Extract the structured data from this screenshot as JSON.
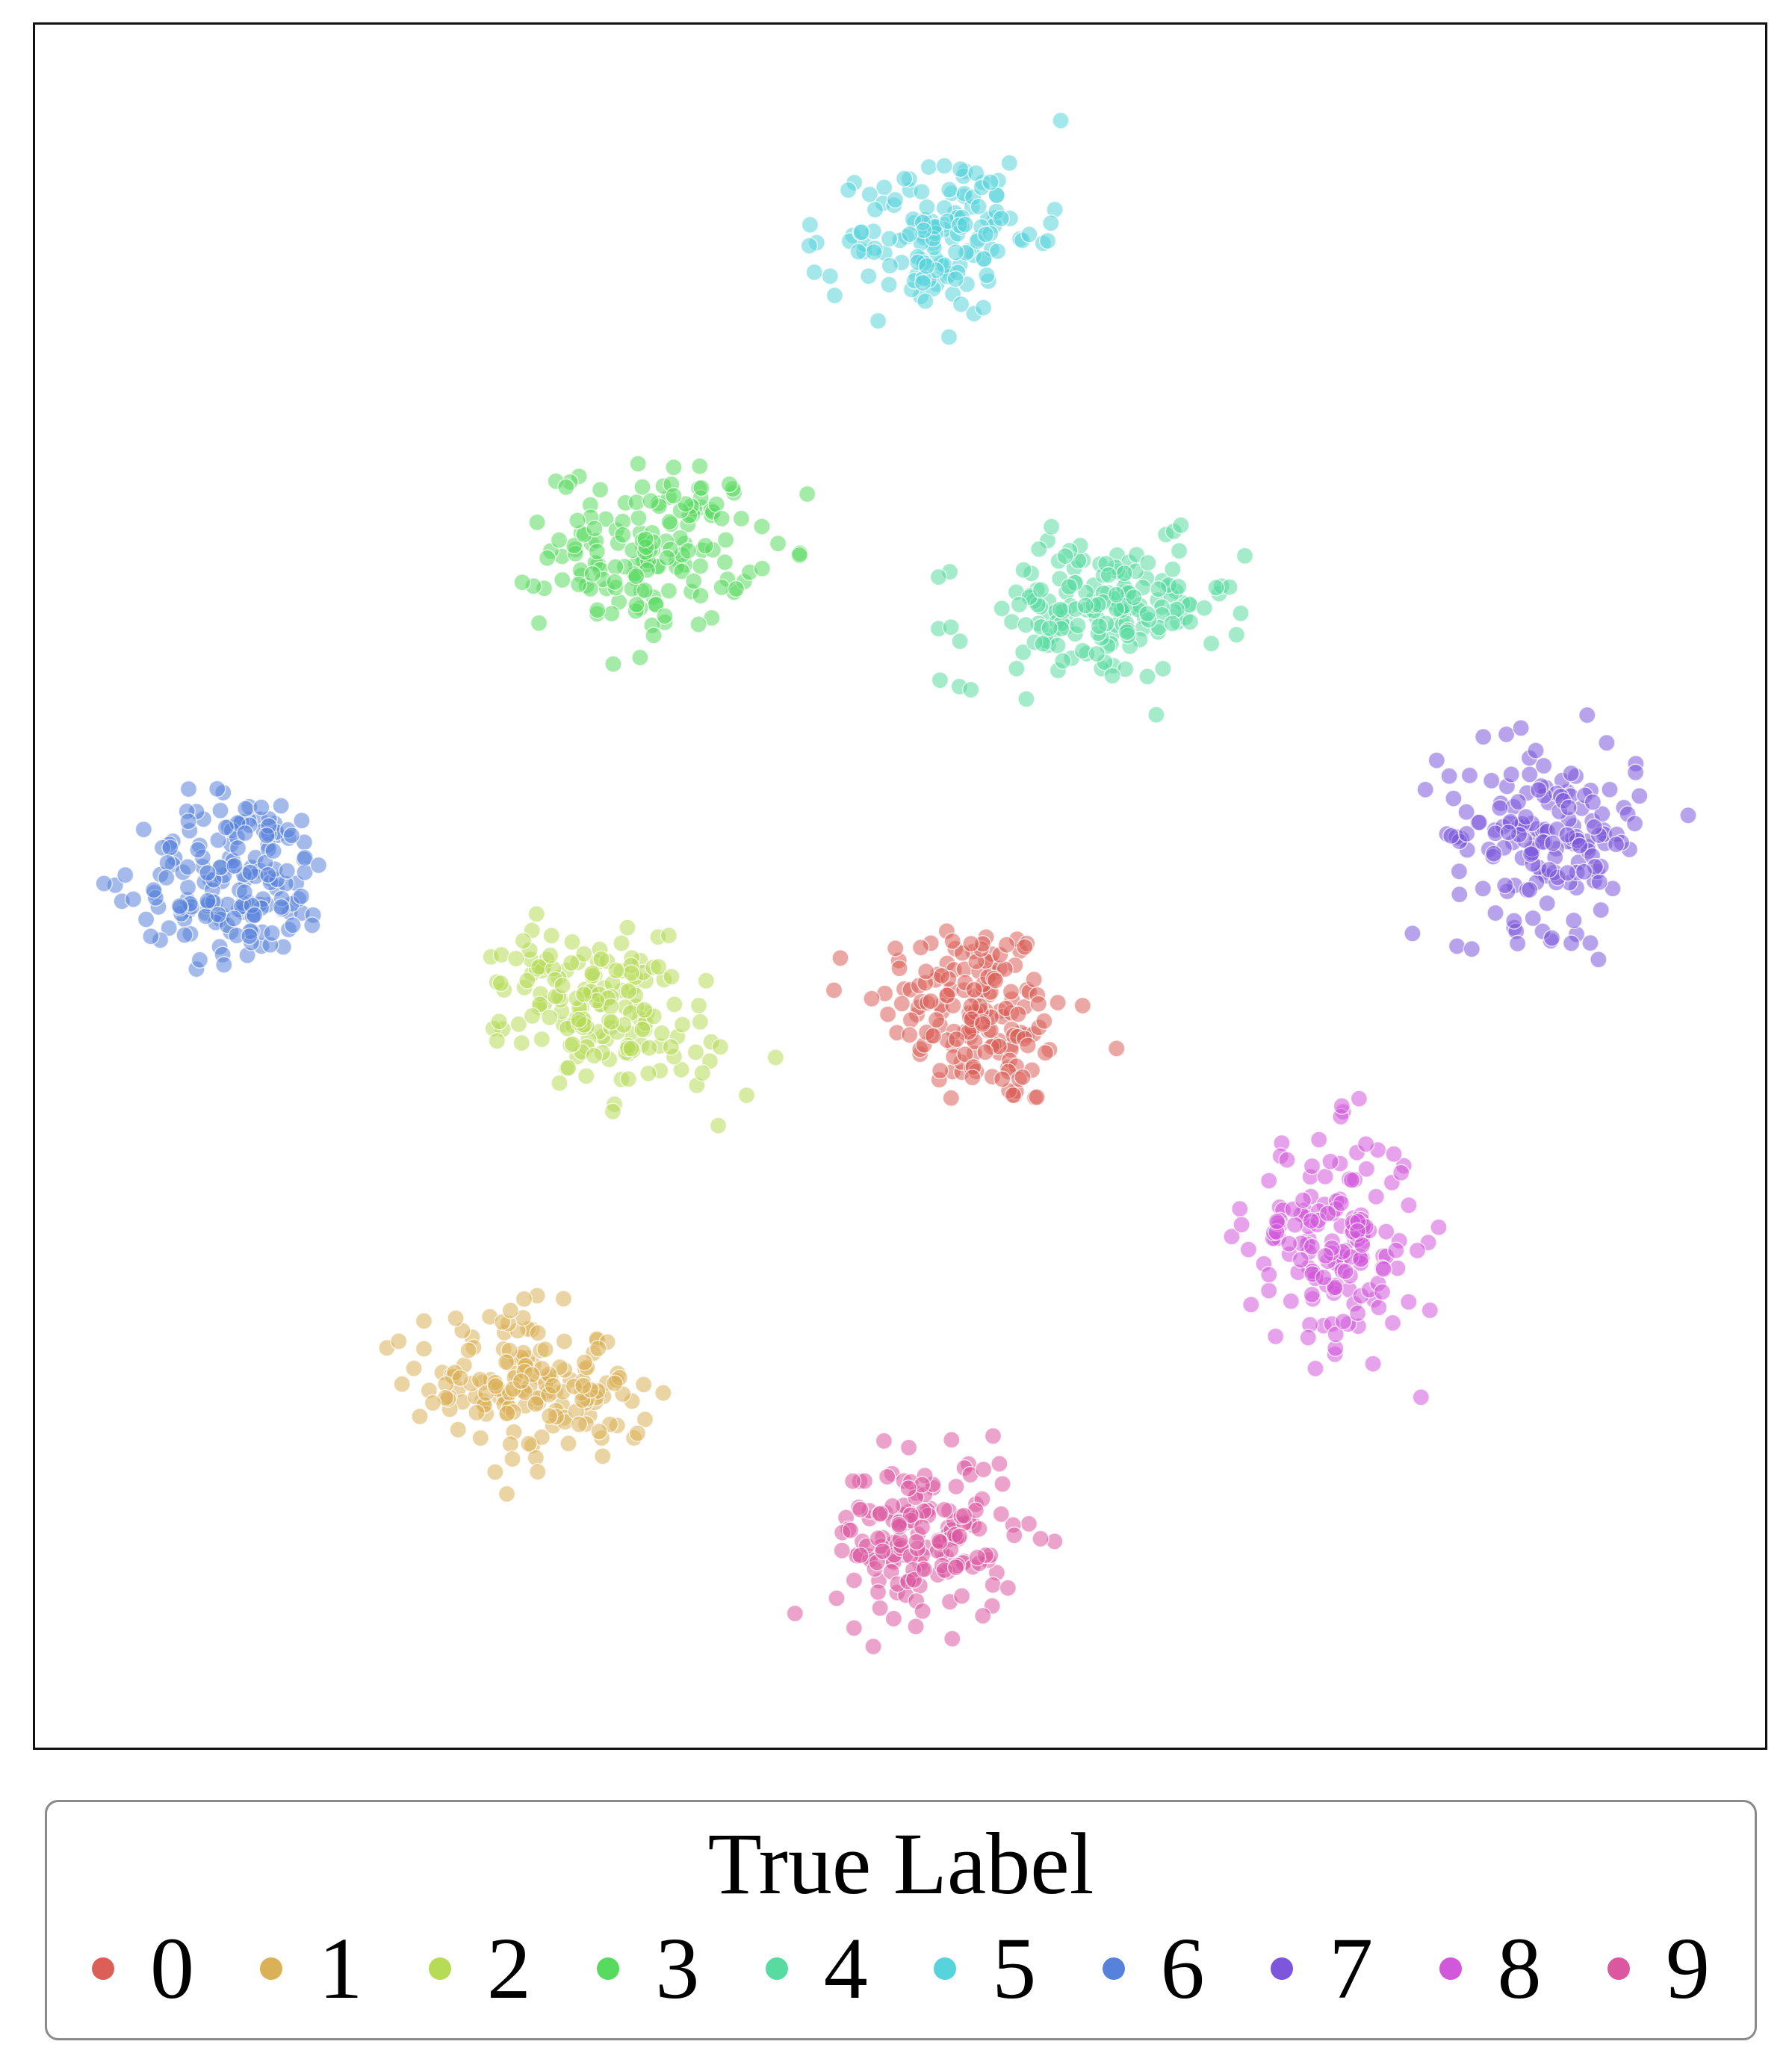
{
  "chart_data": {
    "type": "scatter",
    "title": "",
    "xlabel": "",
    "ylabel": "",
    "grid": false,
    "axes_ticks": false,
    "xlim": [
      0,
      100
    ],
    "ylim": [
      0,
      100
    ],
    "legend": {
      "title": "True Label",
      "placement": "bottom",
      "labels": [
        "0",
        "1",
        "2",
        "3",
        "4",
        "5",
        "6",
        "7",
        "8",
        "9"
      ]
    },
    "colors": [
      "#db5f57",
      "#dbb157",
      "#b6db57",
      "#57db5f",
      "#57dba0",
      "#57d3db",
      "#5782db",
      "#7c57db",
      "#d157db",
      "#db57a0"
    ],
    "series": [
      {
        "name": "0",
        "cluster": {
          "center": [
            54.5,
            42.5
          ],
          "spread": [
            5.0,
            5.2
          ],
          "count": 170,
          "tilt": -0.3
        }
      },
      {
        "name": "1",
        "cluster": {
          "center": [
            28.5,
            20.5
          ],
          "spread": [
            5.6,
            4.0
          ],
          "count": 170,
          "tilt": -0.35
        }
      },
      {
        "name": "2",
        "cluster": {
          "center": [
            32.5,
            42.5
          ],
          "spread": [
            5.6,
            4.2
          ],
          "count": 170,
          "tilt": -0.45
        }
      },
      {
        "name": "3",
        "cluster": {
          "center": [
            35.5,
            70.0
          ],
          "spread": [
            5.4,
            4.3
          ],
          "count": 160,
          "tilt": 0.1
        }
      },
      {
        "name": "4",
        "cluster": {
          "center": [
            61.5,
            66.2
          ],
          "spread": [
            7.0,
            3.8
          ],
          "count": 175,
          "tilt": 0.15
        }
      },
      {
        "name": "5",
        "cluster": {
          "center": [
            52.5,
            88.5
          ],
          "spread": [
            5.0,
            4.2
          ],
          "count": 150,
          "tilt": 0.3
        }
      },
      {
        "name": "6",
        "cluster": {
          "center": [
            11.0,
            50.5
          ],
          "spread": [
            5.3,
            4.6
          ],
          "count": 175,
          "tilt": 0.1
        }
      },
      {
        "name": "7",
        "cluster": {
          "center": [
            88.0,
            53.0
          ],
          "spread": [
            5.3,
            5.0
          ],
          "count": 165,
          "tilt": -0.1
        }
      },
      {
        "name": "8",
        "cluster": {
          "center": [
            75.5,
            29.0
          ],
          "spread": [
            4.5,
            5.8
          ],
          "count": 165,
          "tilt": 0.0
        }
      },
      {
        "name": "9",
        "cluster": {
          "center": [
            51.5,
            11.5
          ],
          "spread": [
            4.8,
            4.4
          ],
          "count": 165,
          "tilt": 0.0
        }
      }
    ]
  }
}
